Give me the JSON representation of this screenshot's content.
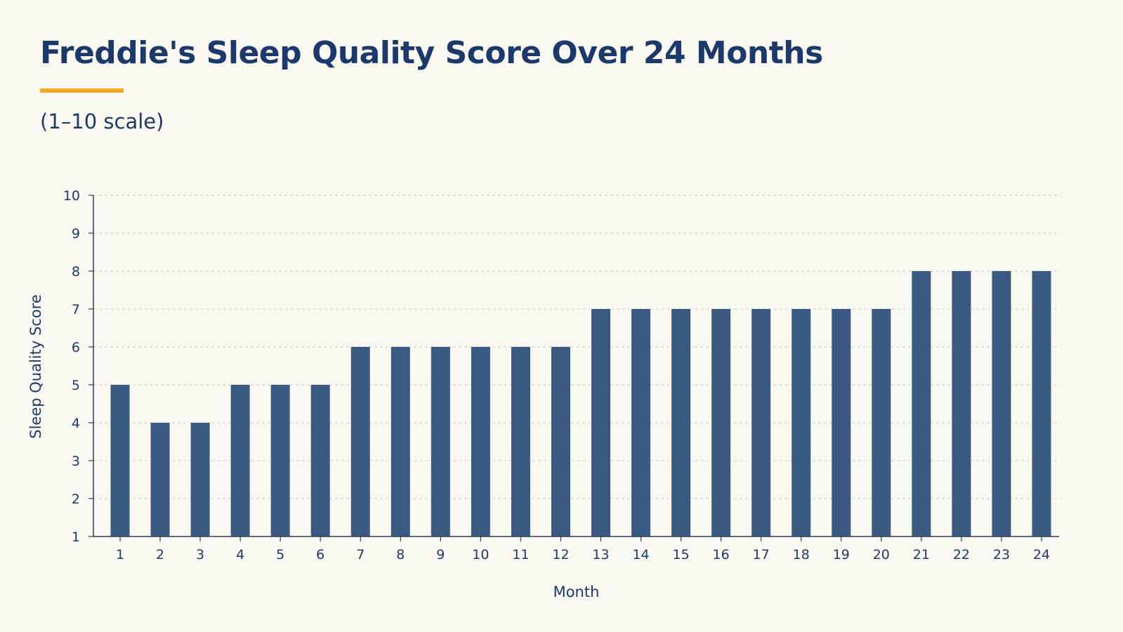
{
  "header": {
    "title": "Freddie's Sleep Quality Score Over 24 Months",
    "subtitle": "(1–10 scale)"
  },
  "colors": {
    "bar": "#3A5A82",
    "accent": "#F4A922",
    "text": "#1B3A6B",
    "grid": "#C9C9C9",
    "axis": "#2B3E5C",
    "background": "#FBF8F1"
  },
  "chart_data": {
    "type": "bar",
    "title": "",
    "xlabel": "Month",
    "ylabel": "Sleep Quality Score",
    "categories": [
      "1",
      "2",
      "3",
      "4",
      "5",
      "6",
      "7",
      "8",
      "9",
      "10",
      "11",
      "12",
      "13",
      "14",
      "15",
      "16",
      "17",
      "18",
      "19",
      "20",
      "21",
      "22",
      "23",
      "24"
    ],
    "values": [
      5,
      4,
      4,
      5,
      5,
      5,
      6,
      6,
      6,
      6,
      6,
      6,
      7,
      7,
      7,
      7,
      7,
      7,
      7,
      7,
      8,
      8,
      8,
      8
    ],
    "ylim": [
      1,
      10
    ],
    "yticks": [
      1,
      2,
      3,
      4,
      5,
      6,
      7,
      8,
      9,
      10
    ],
    "grid": true,
    "legend": "none"
  }
}
